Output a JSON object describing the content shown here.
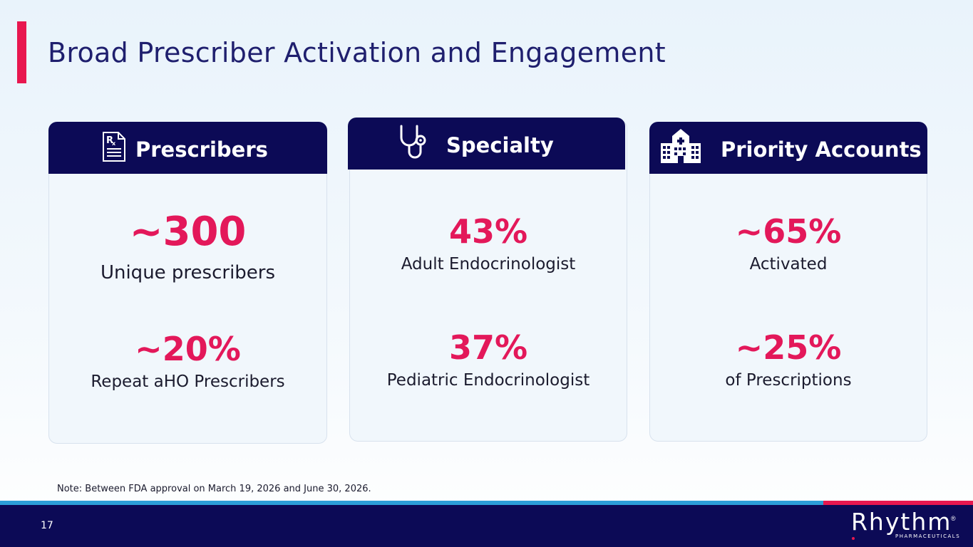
{
  "slide": {
    "title": "Broad Prescriber Activation and Engagement",
    "note": "Note: Between FDA approval on March 19, 2026 and June 30, 2026.",
    "page_number": "17"
  },
  "cards": {
    "prescribers": {
      "header": "Prescribers",
      "icon": "prescription-icon",
      "metric1_value": "~300",
      "metric1_label": "Unique prescribers",
      "metric2_value": "~20%",
      "metric2_label": "Repeat aHO Prescribers"
    },
    "specialty": {
      "header": "Specialty",
      "icon": "stethoscope-icon",
      "metric1_value": "43%",
      "metric1_label": "Adult Endocrinologist",
      "metric2_value": "37%",
      "metric2_label": "Pediatric Endocrinologist"
    },
    "priority": {
      "header": "Priority Accounts",
      "icon": "hospital-icon",
      "metric1_value": "~65%",
      "metric1_label": "Activated",
      "metric2_value": "~25%",
      "metric2_label": "of Prescriptions"
    }
  },
  "logo": {
    "wordmark": "Rhythm",
    "tagline": "PHARMACEUTICALS",
    "registered": "®"
  },
  "colors": {
    "navy": "#0c0a56",
    "accent_red": "#e3185a",
    "footer_blue": "#2d9fd9"
  }
}
